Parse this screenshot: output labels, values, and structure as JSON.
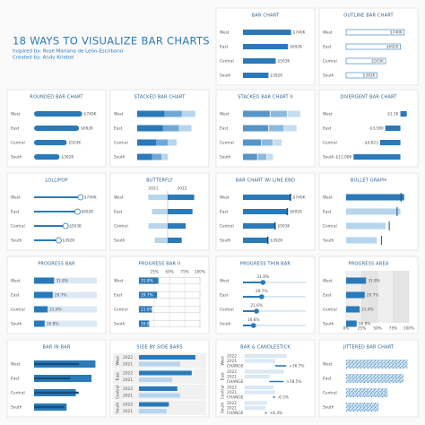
{
  "header": {
    "title": "18 WAYS TO VISUALIZE BAR CHARTS",
    "subtitle": [
      "Inspired by: Rose Mariana de León-Escribano",
      "Created by: Andy Kriebel"
    ]
  },
  "chart_data": [
    {
      "type": "bar",
      "title": "BAR CHART",
      "categories": [
        "West",
        "East",
        "Central",
        "South"
      ],
      "values": [
        740000,
        692000,
        503000,
        392000
      ],
      "value_labels": [
        "$740K",
        "$692K",
        "$503K",
        "$392K"
      ],
      "xlim": [
        0,
        800000
      ]
    },
    {
      "type": "outline",
      "title": "OUTLINE BAR CHART",
      "categories": [
        "West",
        "East",
        "Central",
        "South"
      ],
      "values": [
        740000,
        692000,
        503000,
        392000
      ],
      "value_labels": [
        "$740K",
        "$692K",
        "$503K",
        "$392K"
      ],
      "xlim": [
        0,
        800000
      ]
    },
    {
      "type": "rounded",
      "title": "ROUNDED BAR CHART",
      "categories": [
        "West",
        "East",
        "Central",
        "South"
      ],
      "values": [
        740000,
        692000,
        503000,
        392000
      ],
      "value_labels": [
        "$740K",
        "$692K",
        "$503K",
        "$392K"
      ],
      "xlim": [
        0,
        800000
      ]
    },
    {
      "type": "stacked",
      "title": "STACKED BAR CHART",
      "categories": [
        "West",
        "East",
        "Central",
        "South"
      ],
      "series": [
        {
          "color": "#2a7ab9",
          "values": [
            350000,
            330000,
            240000,
            190000
          ]
        },
        {
          "color": "#6fa8d6",
          "values": [
            220000,
            200000,
            150000,
            120000
          ]
        },
        {
          "color": "#b7d5ec",
          "values": [
            170000,
            162000,
            113000,
            82000
          ]
        }
      ],
      "xlim": [
        0,
        800000
      ]
    },
    {
      "type": "stackedgap",
      "title": "STACKED BAR CHART II",
      "categories": [
        "West",
        "East",
        "Central",
        "South"
      ],
      "series": [
        {
          "color": "#2a7ab9",
          "values": [
            350000,
            330000,
            240000,
            190000
          ]
        },
        {
          "color": "#6fa8d6",
          "values": [
            220000,
            200000,
            150000,
            120000
          ]
        },
        {
          "color": "#b7d5ec",
          "values": [
            170000,
            162000,
            113000,
            82000
          ]
        }
      ],
      "xlim": [
        0,
        800000
      ]
    },
    {
      "type": "divergent",
      "title": "DIVERGENT BAR CHART",
      "categories": [
        "West",
        "East",
        "Central",
        "South"
      ],
      "values": [
        1500,
        -3580,
        -4823,
        -11086
      ],
      "value_labels": [
        "$1.5K",
        "-$3,580",
        "-$4,823",
        "-$11,086"
      ],
      "xlim": [
        -12000,
        2000
      ]
    },
    {
      "type": "lollipop",
      "title": "LOLLIPOP",
      "categories": [
        "West",
        "East",
        "Central",
        "South"
      ],
      "values": [
        740000,
        692000,
        503000,
        392000
      ],
      "value_labels": [
        "$740K",
        "$692K",
        "$503K",
        "$392K"
      ],
      "xlim": [
        0,
        800000
      ]
    },
    {
      "type": "butterfly",
      "title": "BUTTERFLY",
      "categories": [
        "West",
        "East",
        "Central",
        "South"
      ],
      "series": [
        {
          "name": "2021",
          "values": [
            541000,
            437000,
            538000,
            362000
          ]
        },
        {
          "name": "2022",
          "values": [
            740000,
            692000,
            503000,
            392000
          ]
        }
      ],
      "xlim": [
        0,
        800000
      ]
    },
    {
      "type": "lineend",
      "title": "BAR CHART W/ LINE END",
      "categories": [
        "West",
        "East",
        "Central",
        "South"
      ],
      "values": [
        740000,
        692000,
        503000,
        392000
      ],
      "value_labels": [
        "$740K",
        "$692K",
        "$503K",
        "$392K"
      ],
      "xlim": [
        0,
        800000
      ]
    },
    {
      "type": "bullet",
      "title": "BULLET GRAPH",
      "categories": [
        "West",
        "East",
        "Central",
        "South"
      ],
      "values": [
        740000,
        692000,
        503000,
        392000
      ],
      "targets": [
        700000,
        650000,
        550000,
        450000
      ],
      "xlim": [
        0,
        800000
      ]
    },
    {
      "type": "progress",
      "title": "PROGRESS BAR",
      "categories": [
        "West",
        "East",
        "Central",
        "South"
      ],
      "values": [
        31.8,
        29.7,
        21.6,
        16.8
      ],
      "value_labels": [
        "31.8%",
        "29.7%",
        "21.6%",
        "16.8%"
      ],
      "xlim": [
        0,
        100
      ]
    },
    {
      "type": "progressticks",
      "title": "PROGRESS BAR II",
      "categories": [
        "West",
        "East",
        "Central",
        "South"
      ],
      "values": [
        31.8,
        29.7,
        21.6,
        16.8
      ],
      "value_labels": [
        "31.8%",
        "29.7%",
        "21.6%",
        "16.8%"
      ],
      "xlim": [
        0,
        100
      ],
      "xticks": [
        {
          "value": 25,
          "label": "25%"
        },
        {
          "value": 50,
          "label": "50%"
        },
        {
          "value": 75,
          "label": "75%"
        },
        {
          "value": 100,
          "label": "100%"
        }
      ]
    },
    {
      "type": "progressthin",
      "title": "PROGRESS THIN BAR",
      "categories": [
        "West",
        "East",
        "Central",
        "South"
      ],
      "values": [
        31.8,
        29.7,
        21.6,
        16.8
      ],
      "value_labels": [
        "31.8%",
        "29.7%",
        "21.6%",
        "16.8%"
      ],
      "xlim": [
        0,
        100
      ]
    },
    {
      "type": "progressarea",
      "title": "PROGRESS AREA",
      "categories": [
        "West",
        "East",
        "Central",
        "South"
      ],
      "values": [
        31.8,
        29.7,
        21.6,
        16.8
      ],
      "value_labels": [
        "31.8%",
        "29.7%",
        "21.6%",
        "16.8%"
      ],
      "xlim": [
        0,
        100
      ],
      "xticks": [
        {
          "value": 0,
          "label": "0%"
        },
        {
          "value": 25,
          "label": "25%"
        },
        {
          "value": 50,
          "label": "50%"
        },
        {
          "value": 75,
          "label": "75%"
        },
        {
          "value": 100,
          "label": "100%"
        }
      ]
    },
    {
      "type": "barinbar",
      "title": "BAR IN BAR",
      "categories": [
        "West",
        "East",
        "Central",
        "South"
      ],
      "series": [
        {
          "values": [
            740000,
            692000,
            503000,
            392000
          ]
        },
        {
          "values": [
            541000,
            437000,
            538000,
            362000
          ]
        }
      ],
      "xlim": [
        0,
        800000
      ]
    },
    {
      "type": "sidebyside",
      "title": "SIDE BY SIDE BARS",
      "categories": [
        "West",
        "East",
        "Central",
        "South"
      ],
      "series": [
        {
          "name": "2022",
          "values": [
            740000,
            692000,
            503000,
            392000
          ]
        },
        {
          "name": "2021",
          "values": [
            541000,
            437000,
            538000,
            362000
          ]
        }
      ],
      "xlim": [
        0,
        800000
      ]
    },
    {
      "type": "candlestick",
      "title": "BAR & CANDLESTICK",
      "categories": [
        "West",
        "East",
        "Central",
        "South"
      ],
      "series": [
        {
          "name": "2022",
          "values": [
            740000,
            692000,
            503000,
            392000
          ]
        },
        {
          "name": "2021",
          "values": [
            541000,
            437000,
            538000,
            362000
          ]
        }
      ],
      "change_label": "CHANGE",
      "changes": [
        36.7,
        58.5,
        -6.5,
        8.3
      ],
      "change_labels": [
        "+36.7%",
        "+58.5%",
        "-6.5%",
        "+8.3%"
      ],
      "xlim": [
        0,
        800000
      ]
    },
    {
      "type": "jitter",
      "title": "JITTERED BAR CHART",
      "categories": [
        "West",
        "East",
        "Central",
        "South"
      ],
      "values": [
        740000,
        692000,
        503000,
        392000
      ],
      "xlim": [
        0,
        800000
      ]
    }
  ]
}
